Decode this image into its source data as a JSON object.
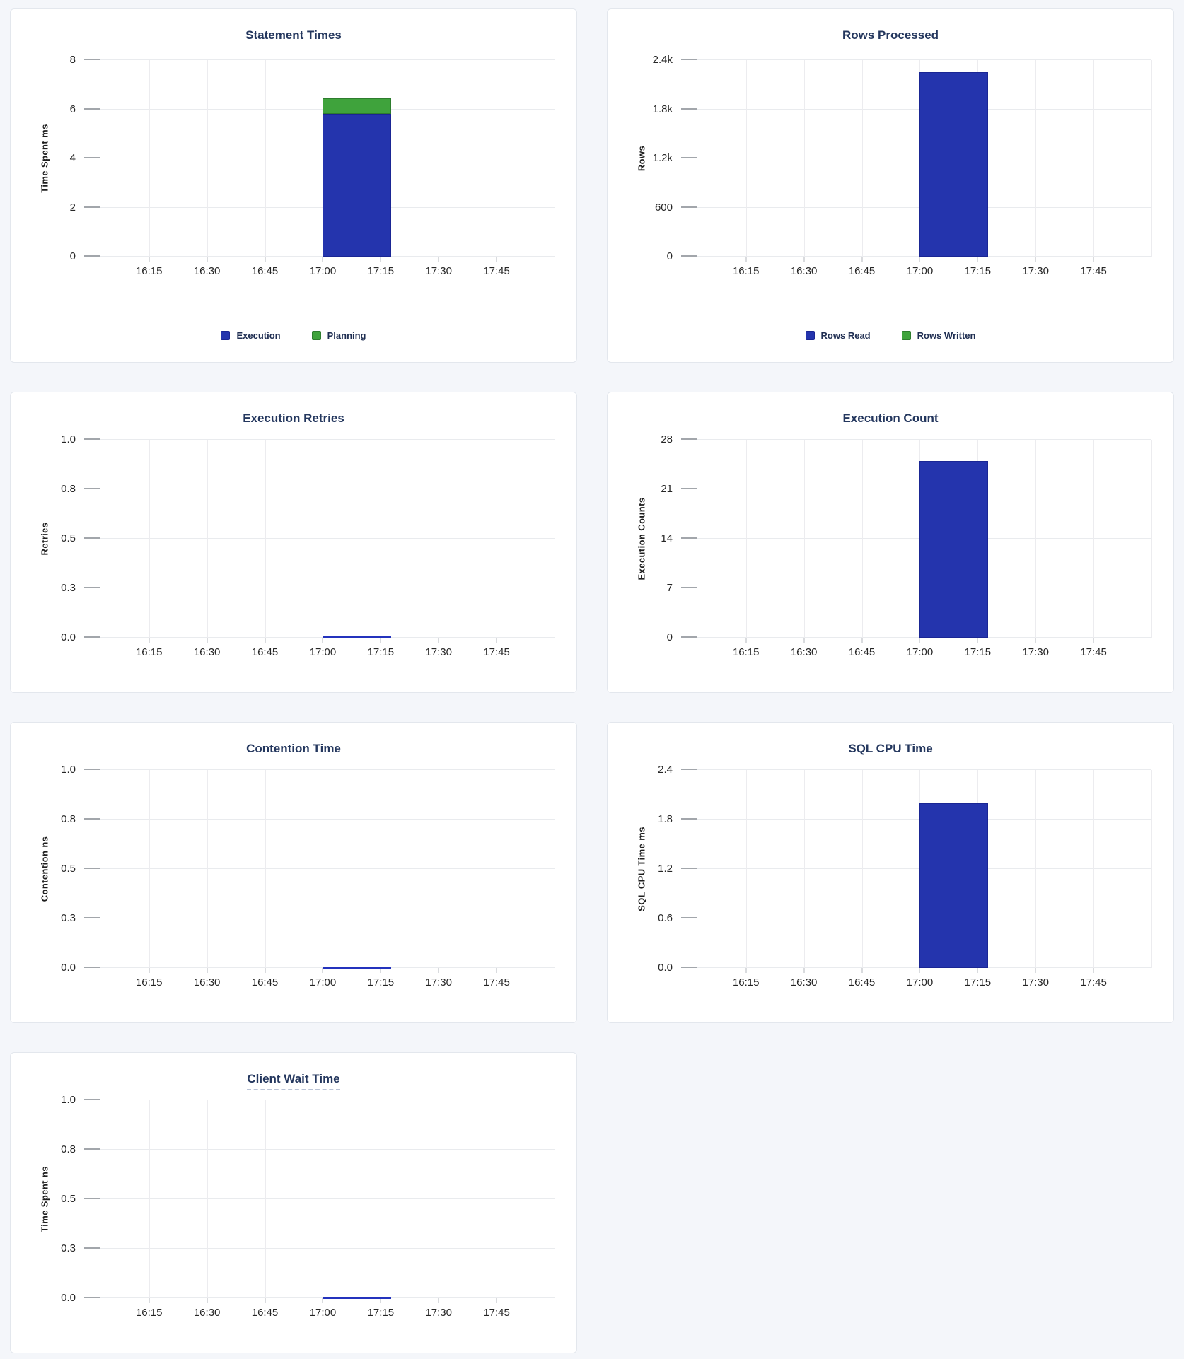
{
  "page": {
    "background_color": "#f4f6fa",
    "card_background": "#ffffff",
    "card_border_color": "#e3e7ed"
  },
  "palette": {
    "bar_blue": "#2434ad",
    "bar_green": "#3fa33c",
    "title_navy": "#24375e",
    "axis_text": "#262626",
    "gridline": "#e9ebee"
  },
  "x_ticks": [
    "16:15",
    "16:30",
    "16:45",
    "17:00",
    "17:15",
    "17:30",
    "17:45"
  ],
  "chart_data": [
    {
      "id": "statement-times",
      "type": "bar",
      "title": "Statement Times",
      "title_underline": false,
      "ylabel": "Time Spent ms",
      "ylim": [
        0,
        8
      ],
      "y_tick_labels": [
        "0",
        "2",
        "4",
        "6",
        "8"
      ],
      "categories": [
        "16:15",
        "16:30",
        "16:45",
        "17:00",
        "17:15",
        "17:30",
        "17:45"
      ],
      "stacked": true,
      "bar_x": {
        "start": "17:00",
        "end": "17:17"
      },
      "series": [
        {
          "name": "Execution",
          "color": "blue",
          "value": 5.8
        },
        {
          "name": "Planning",
          "color": "green",
          "value": 0.65
        }
      ],
      "legend": [
        {
          "label": "Execution",
          "color": "blue"
        },
        {
          "label": "Planning",
          "color": "green"
        }
      ],
      "legend_position": "bottom",
      "grid": true,
      "size": "large"
    },
    {
      "id": "rows-processed",
      "type": "bar",
      "title": "Rows Processed",
      "title_underline": false,
      "ylabel": "Rows",
      "ylim": [
        0,
        2400
      ],
      "y_tick_labels": [
        "0",
        "600",
        "1.2k",
        "1.8k",
        "2.4k"
      ],
      "categories": [
        "16:15",
        "16:30",
        "16:45",
        "17:00",
        "17:15",
        "17:30",
        "17:45"
      ],
      "stacked": true,
      "bar_x": {
        "start": "17:00",
        "end": "17:17"
      },
      "series": [
        {
          "name": "Rows Read",
          "color": "blue",
          "value": 2250
        },
        {
          "name": "Rows Written",
          "color": "green",
          "value": 0
        }
      ],
      "legend": [
        {
          "label": "Rows Read",
          "color": "blue"
        },
        {
          "label": "Rows Written",
          "color": "green"
        }
      ],
      "legend_position": "bottom",
      "grid": true,
      "size": "large"
    },
    {
      "id": "execution-retries",
      "type": "bar",
      "title": "Execution Retries",
      "title_underline": false,
      "ylabel": "Retries",
      "ylim": [
        0,
        1
      ],
      "y_tick_labels": [
        "0.0",
        "0.3",
        "0.5",
        "0.8",
        "1.0"
      ],
      "categories": [
        "16:15",
        "16:30",
        "16:45",
        "17:00",
        "17:15",
        "17:30",
        "17:45"
      ],
      "bar_x": {
        "start": "17:00",
        "end": "17:17"
      },
      "series": [
        {
          "name": "Retries",
          "color": "blue",
          "value": 0
        }
      ],
      "zero_line": true,
      "grid": true,
      "size": "small"
    },
    {
      "id": "execution-count",
      "type": "bar",
      "title": "Execution Count",
      "title_underline": false,
      "ylabel": "Execution Counts",
      "ylim": [
        0,
        28
      ],
      "y_tick_labels": [
        "0",
        "7",
        "14",
        "21",
        "28"
      ],
      "categories": [
        "16:15",
        "16:30",
        "16:45",
        "17:00",
        "17:15",
        "17:30",
        "17:45"
      ],
      "bar_x": {
        "start": "17:00",
        "end": "17:17"
      },
      "series": [
        {
          "name": "Execution Count",
          "color": "blue",
          "value": 25
        }
      ],
      "grid": true,
      "size": "small"
    },
    {
      "id": "contention-time",
      "type": "bar",
      "title": "Contention Time",
      "title_underline": false,
      "ylabel": "Contention ns",
      "ylim": [
        0,
        1
      ],
      "y_tick_labels": [
        "0.0",
        "0.3",
        "0.5",
        "0.8",
        "1.0"
      ],
      "categories": [
        "16:15",
        "16:30",
        "16:45",
        "17:00",
        "17:15",
        "17:30",
        "17:45"
      ],
      "bar_x": {
        "start": "17:00",
        "end": "17:17"
      },
      "series": [
        {
          "name": "Contention",
          "color": "blue",
          "value": 0
        }
      ],
      "zero_line": true,
      "grid": true,
      "size": "small"
    },
    {
      "id": "sql-cpu-time",
      "type": "bar",
      "title": "SQL CPU Time",
      "title_underline": false,
      "ylabel": "SQL CPU Time ms",
      "ylim": [
        0,
        2.4
      ],
      "y_tick_labels": [
        "0.0",
        "0.6",
        "1.2",
        "1.8",
        "2.4"
      ],
      "categories": [
        "16:15",
        "16:30",
        "16:45",
        "17:00",
        "17:15",
        "17:30",
        "17:45"
      ],
      "bar_x": {
        "start": "17:00",
        "end": "17:17"
      },
      "series": [
        {
          "name": "SQL CPU Time",
          "color": "blue",
          "value": 2.0
        }
      ],
      "grid": true,
      "size": "small"
    },
    {
      "id": "client-wait-time",
      "type": "bar",
      "title": "Client Wait Time",
      "title_underline": true,
      "ylabel": "Time Spent ns",
      "ylim": [
        0,
        1
      ],
      "y_tick_labels": [
        "0.0",
        "0.3",
        "0.5",
        "0.8",
        "1.0"
      ],
      "categories": [
        "16:15",
        "16:30",
        "16:45",
        "17:00",
        "17:15",
        "17:30",
        "17:45"
      ],
      "bar_x": {
        "start": "17:00",
        "end": "17:17"
      },
      "series": [
        {
          "name": "Client Wait",
          "color": "blue",
          "value": 0
        }
      ],
      "zero_line": true,
      "grid": true,
      "size": "small"
    }
  ]
}
